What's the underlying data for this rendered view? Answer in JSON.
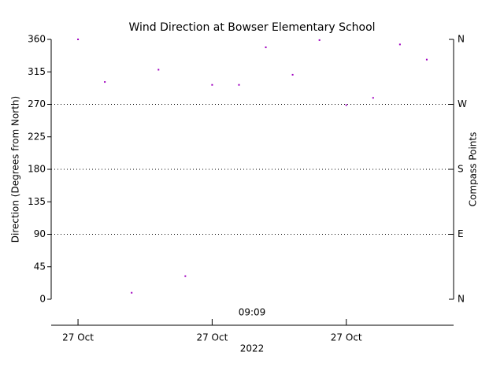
{
  "chart_data": {
    "type": "scatter",
    "title": "Wind Direction at Bowser Elementary School",
    "y_label": "Direction (Degrees from North)",
    "y2_label": "Compass Points",
    "x_label": "2022",
    "annotation": "09:09",
    "categories": [
      "27 Oct",
      null,
      null,
      null,
      null,
      "27 Oct",
      null,
      null,
      null,
      null,
      "27 Oct",
      null,
      null,
      null
    ],
    "series": [
      {
        "color": "#a000c0",
        "values": [
          360,
          301,
          9,
          318,
          32,
          297,
          297,
          349,
          311,
          359,
          269,
          279,
          353,
          332
        ]
      }
    ],
    "ylim": [
      0,
      360
    ],
    "yticks": [
      0,
      45,
      90,
      135,
      180,
      225,
      270,
      315,
      360
    ],
    "y2lim": [
      0,
      360
    ],
    "y2ticks": [
      {
        "value": 0,
        "label": "N"
      },
      {
        "value": 90,
        "label": "E"
      },
      {
        "value": 180,
        "label": "S"
      },
      {
        "value": 270,
        "label": "W"
      },
      {
        "value": 360,
        "label": "N"
      }
    ],
    "grid": true
  }
}
